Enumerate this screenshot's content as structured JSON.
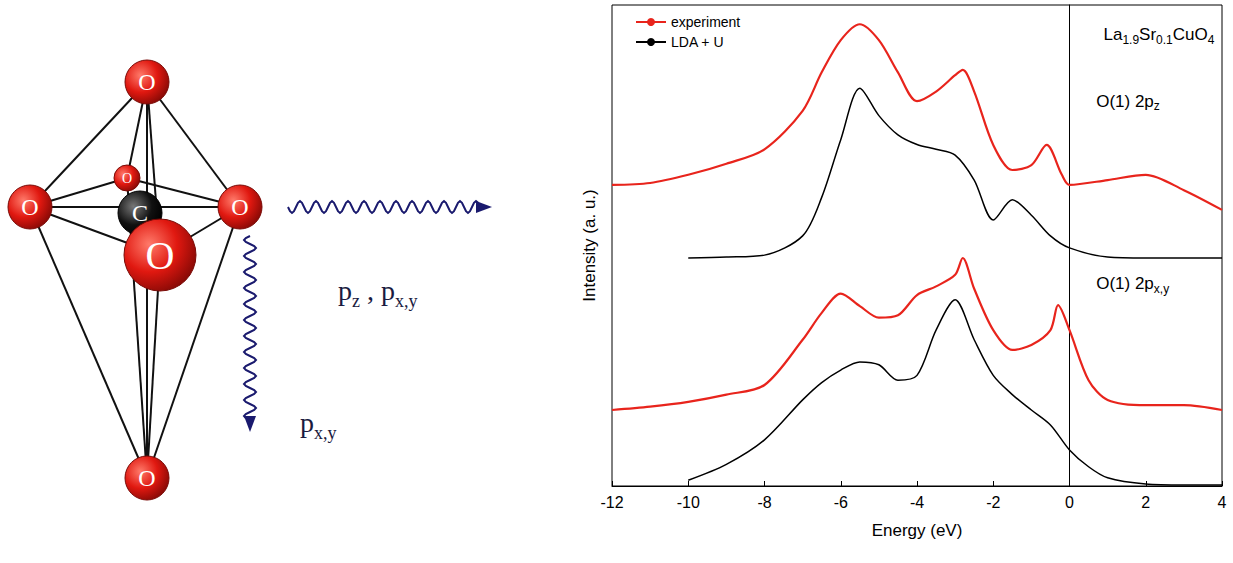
{
  "chart_data": {
    "type": "line",
    "x_label": "Energy (eV)",
    "y_label": "Intensity (a. u.)",
    "xlim": [
      -12,
      4
    ],
    "xticks": [
      -12,
      -10,
      -8,
      -6,
      -4,
      -2,
      0,
      2,
      4
    ],
    "ylim": [
      0,
      100
    ],
    "tick_labels": "x",
    "grid": false,
    "legend": "top-left",
    "series": [
      {
        "name": "experiment",
        "color": "#e8241c",
        "line_style": "solid",
        "x": [
          -12,
          -11,
          -10,
          -9,
          -8,
          -7,
          -6.5,
          -6,
          -5.5,
          -5,
          -4.5,
          -4,
          -3.5,
          -3,
          -2.8,
          -2.5,
          -2,
          -1.5,
          -1,
          -0.6,
          -0.2,
          0,
          1,
          2,
          3,
          4
        ],
        "values": [
          62.6,
          63,
          64.7,
          67,
          70,
          78,
          86,
          92.7,
          96,
          92.7,
          86,
          80,
          82,
          85.4,
          86.5,
          82,
          70.9,
          65.7,
          66.7,
          70.9,
          64.7,
          62.6,
          63.6,
          64.7,
          61.5,
          57.4
        ]
      },
      {
        "name": "LDA + U",
        "color": "#000000",
        "line_style": "solid",
        "x": [
          -10,
          -9,
          -8,
          -7,
          -6.5,
          -6,
          -5.5,
          -5,
          -4.5,
          -4,
          -3.5,
          -3,
          -2.5,
          -2,
          -1.5,
          -1,
          -0.5,
          0,
          1,
          2,
          3,
          4
        ],
        "values": [
          47.4,
          47.6,
          48,
          52,
          60,
          72,
          82.7,
          77,
          73,
          71,
          70,
          68.8,
          63.6,
          55.3,
          59.5,
          56.3,
          52,
          49.5,
          47.6,
          47.4,
          47.4,
          47.4
        ]
      },
      {
        "name": "experiment",
        "color": "#e8241c",
        "line_style": "solid",
        "x": [
          -12,
          -11,
          -10,
          -9,
          -8,
          -7,
          -6.5,
          -6,
          -5.5,
          -5,
          -4.5,
          -4,
          -3.5,
          -3,
          -2.8,
          -2.5,
          -2,
          -1.5,
          -1,
          -0.5,
          -0.3,
          0,
          0.5,
          1,
          2,
          3,
          4
        ],
        "values": [
          15.8,
          16.5,
          17.5,
          19,
          21,
          30.4,
          36,
          40,
          37.4,
          35,
          35.5,
          39.7,
          41.5,
          43.9,
          47.4,
          41,
          32.4,
          28.3,
          29.3,
          32.4,
          37.6,
          32.4,
          22,
          17.9,
          16.8,
          16.8,
          15.8
        ]
      },
      {
        "name": "LDA + U",
        "color": "#000000",
        "line_style": "solid",
        "x": [
          -10,
          -9,
          -8,
          -7,
          -6.5,
          -6,
          -5.5,
          -5,
          -4.5,
          -4,
          -3.5,
          -3,
          -2.5,
          -2,
          -1.5,
          -1,
          -0.5,
          0,
          0.5,
          1,
          2,
          3,
          4
        ],
        "values": [
          1.2,
          4.5,
          9.6,
          17.9,
          21.5,
          24.1,
          25.8,
          25.2,
          22,
          23,
          32.4,
          38.7,
          30.4,
          23,
          19,
          15.8,
          12.7,
          7.5,
          4,
          1.7,
          0.4,
          0.2,
          0.2
        ]
      }
    ],
    "annotations": [
      {
        "segments": [
          {
            "t": "La"
          },
          {
            "t": "1.9",
            "sub": true
          },
          {
            "t": "Sr"
          },
          {
            "t": "0.1",
            "sub": true
          },
          {
            "t": "CuO"
          },
          {
            "t": "4",
            "sub": true
          }
        ],
        "x": 3.8,
        "y": 93.8,
        "align": "right"
      },
      {
        "segments": [
          {
            "t": "O(1) 2p"
          },
          {
            "t": "z",
            "sub": true
          }
        ],
        "x": 0.7,
        "y": 80,
        "align": "left"
      },
      {
        "segments": [
          {
            "t": "O(1) 2p"
          },
          {
            "t": "x,y",
            "sub": true
          }
        ],
        "x": 0.7,
        "y": 42,
        "align": "left"
      }
    ]
  },
  "diagram": {
    "atoms": [
      {
        "label": "O"
      },
      {
        "label": "O"
      },
      {
        "label": "O"
      },
      {
        "label": "O"
      },
      {
        "label": "O"
      },
      {
        "label": "O"
      },
      {
        "label": "C"
      }
    ],
    "arrows": [
      {
        "segments": [
          {
            "t": "p"
          },
          {
            "t": "z",
            "sub": true
          },
          {
            "t": " , p"
          },
          {
            "t": "x,y",
            "sub": true
          }
        ]
      },
      {
        "segments": [
          {
            "t": "p"
          },
          {
            "t": "x,y",
            "sub": true
          }
        ]
      }
    ]
  }
}
